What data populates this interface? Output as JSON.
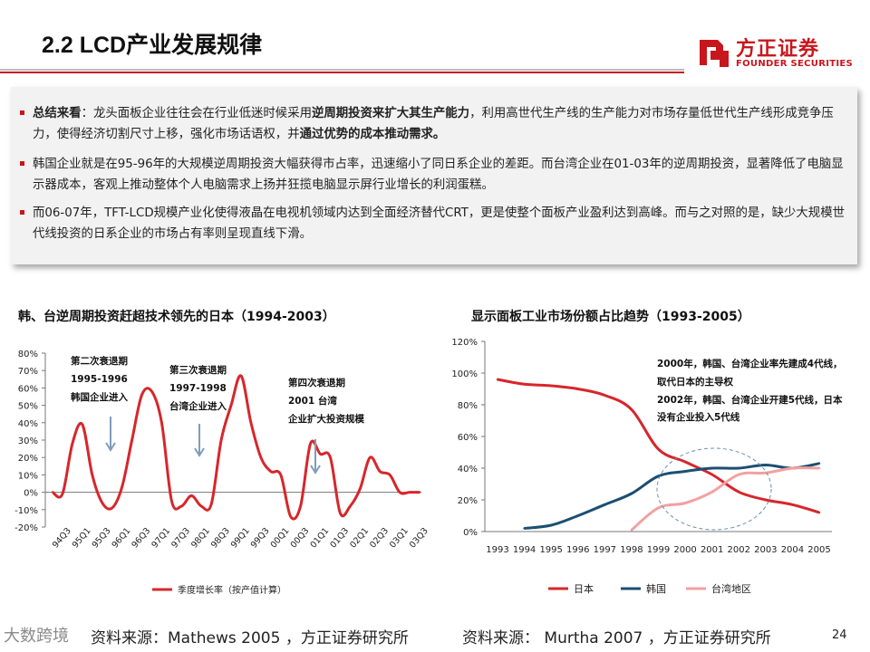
{
  "header": {
    "title": "2.2 LCD产业发展规律",
    "logo_cn": "方正证券",
    "logo_en": "FOUNDER SECURITIES"
  },
  "summary": {
    "b1_label": "总结来看",
    "b1_a": "：龙头面板企业往往会在行业低迷时候采用",
    "b1_bold1": "逆周期投资来扩大其生产能力",
    "b1_b": "，利用高世代生产线的生产能力对市场存量低世代生产线形成竞争压力，使得经济切割尺寸上移，强化市场话语权，并",
    "b1_bold2": "通过优势的成本推动需求。",
    "b2": "韩国企业就是在95-96年的大规模逆周期投资大幅获得市占率，迅速缩小了同日系企业的差距。而台湾企业在01-03年的逆周期投资，显著降低了电脑显示器成本，客观上推动整体个人电脑需求上扬并狂揽电脑显示屏行业增长的利润蛋糕。",
    "b3": "而06-07年，TFT-LCD规模产业化使得液晶在电视机领域内达到全面经济替代CRT，更是使整个面板产业盈利达到高峰。而与之对照的是，缺少大规模世代线投资的日系企业的市场占有率则呈现直线下滑。"
  },
  "colors": {
    "accent_red": "#c8161d",
    "japan": "#d7262b",
    "korea": "#1b4f72",
    "taiwan": "#f4a0a0"
  },
  "chart_left": {
    "title": "韩、台逆周期投资赶超技术领先的日本（1994-2003）",
    "annotations": [
      {
        "l1": "第二次衰退期",
        "l2": "1995-1996",
        "l3": "韩国企业进入"
      },
      {
        "l1": "第三次衰退期",
        "l2": "1997-1998",
        "l3": "台湾企业进入"
      },
      {
        "l1": "第四次衰退期",
        "l2": "2001 台湾",
        "l3": "企业扩大投资规模"
      }
    ],
    "legend": "季度增长率（按产值计算）",
    "source": "资料来源：Mathews 2005 ，方正证券研究所"
  },
  "chart_right": {
    "title": "显示面板工业市场份额占比趋势（1993-2005）",
    "annotation_lines": [
      "2000年，韩国、台湾企业率先建成4代线，",
      "取代日本的主导权",
      "2002年，韩国、台湾企业开建5代线，日本",
      "没有企业投入5代线"
    ],
    "source": "资料来源： Murtha 2007 ，方正证券研究所"
  },
  "chart_data": [
    {
      "type": "line",
      "title": "韩、台逆周期投资赶超技术领先的日本（1994-2003）",
      "xlabel": "",
      "ylabel": "",
      "ylim": [
        -20,
        80
      ],
      "yticks": [
        "80%",
        "70%",
        "60%",
        "50%",
        "40%",
        "30%",
        "20%",
        "10%",
        "0%",
        "-10%",
        "-20%"
      ],
      "categories": [
        "94Q3",
        "94Q4",
        "95Q1",
        "95Q2",
        "95Q3",
        "95Q4",
        "96Q1",
        "96Q2",
        "96Q3",
        "96Q4",
        "97Q1",
        "97Q2",
        "97Q3",
        "97Q4",
        "98Q1",
        "98Q2",
        "98Q3",
        "98Q4",
        "99Q1",
        "99Q2",
        "99Q3",
        "99Q4",
        "00Q1",
        "00Q2",
        "00Q3",
        "00Q4",
        "01Q1",
        "01Q2",
        "01Q3",
        "01Q4",
        "02Q1",
        "02Q2",
        "02Q3",
        "02Q4",
        "03Q1",
        "03Q2",
        "03Q3",
        "03Q4"
      ],
      "tick_labels": [
        "94Q3",
        "95Q1",
        "95Q3",
        "96Q1",
        "96Q3",
        "97Q1",
        "97Q3",
        "98Q1",
        "98Q3",
        "99Q1",
        "99Q3",
        "00Q1",
        "00Q3",
        "01Q1",
        "01Q3",
        "02Q1",
        "02Q3",
        "03Q1",
        "03Q3"
      ],
      "series": [
        {
          "name": "季度增长率（按产值计算）",
          "values": [
            0,
            -1,
            28,
            39,
            10,
            -6,
            -9,
            3,
            30,
            56,
            58,
            40,
            -5,
            -8,
            -2,
            -8,
            -7,
            30,
            50,
            67,
            40,
            20,
            12,
            10,
            -14,
            -8,
            28,
            22,
            20,
            -12,
            -8,
            2,
            20,
            12,
            10,
            0,
            0,
            0
          ]
        }
      ]
    },
    {
      "type": "line",
      "title": "显示面板工业市场份额占比趋势（1993-2005）",
      "xlabel": "",
      "ylabel": "",
      "ylim": [
        0,
        120
      ],
      "yticks": [
        "120%",
        "100%",
        "80%",
        "60%",
        "40%",
        "20%",
        "0%"
      ],
      "categories": [
        "1993",
        "1994",
        "1995",
        "1996",
        "1997",
        "1998",
        "1999",
        "2000",
        "2001",
        "2002",
        "2003",
        "2004",
        "2005"
      ],
      "series": [
        {
          "name": "日本",
          "values": [
            96,
            93,
            92,
            90,
            86,
            77,
            52,
            44,
            36,
            25,
            20,
            17,
            12
          ]
        },
        {
          "name": "韩国",
          "values": [
            null,
            2,
            4,
            10,
            17,
            24,
            35,
            38,
            40,
            40,
            42,
            40,
            43
          ]
        },
        {
          "name": "台湾地区",
          "values": [
            null,
            null,
            null,
            null,
            null,
            1,
            15,
            18,
            25,
            36,
            37,
            40,
            40
          ]
        }
      ],
      "legend": [
        "日本",
        "韩国",
        "台湾地区"
      ]
    }
  ],
  "footer": {
    "watermark": "大数跨境",
    "page": "24"
  }
}
